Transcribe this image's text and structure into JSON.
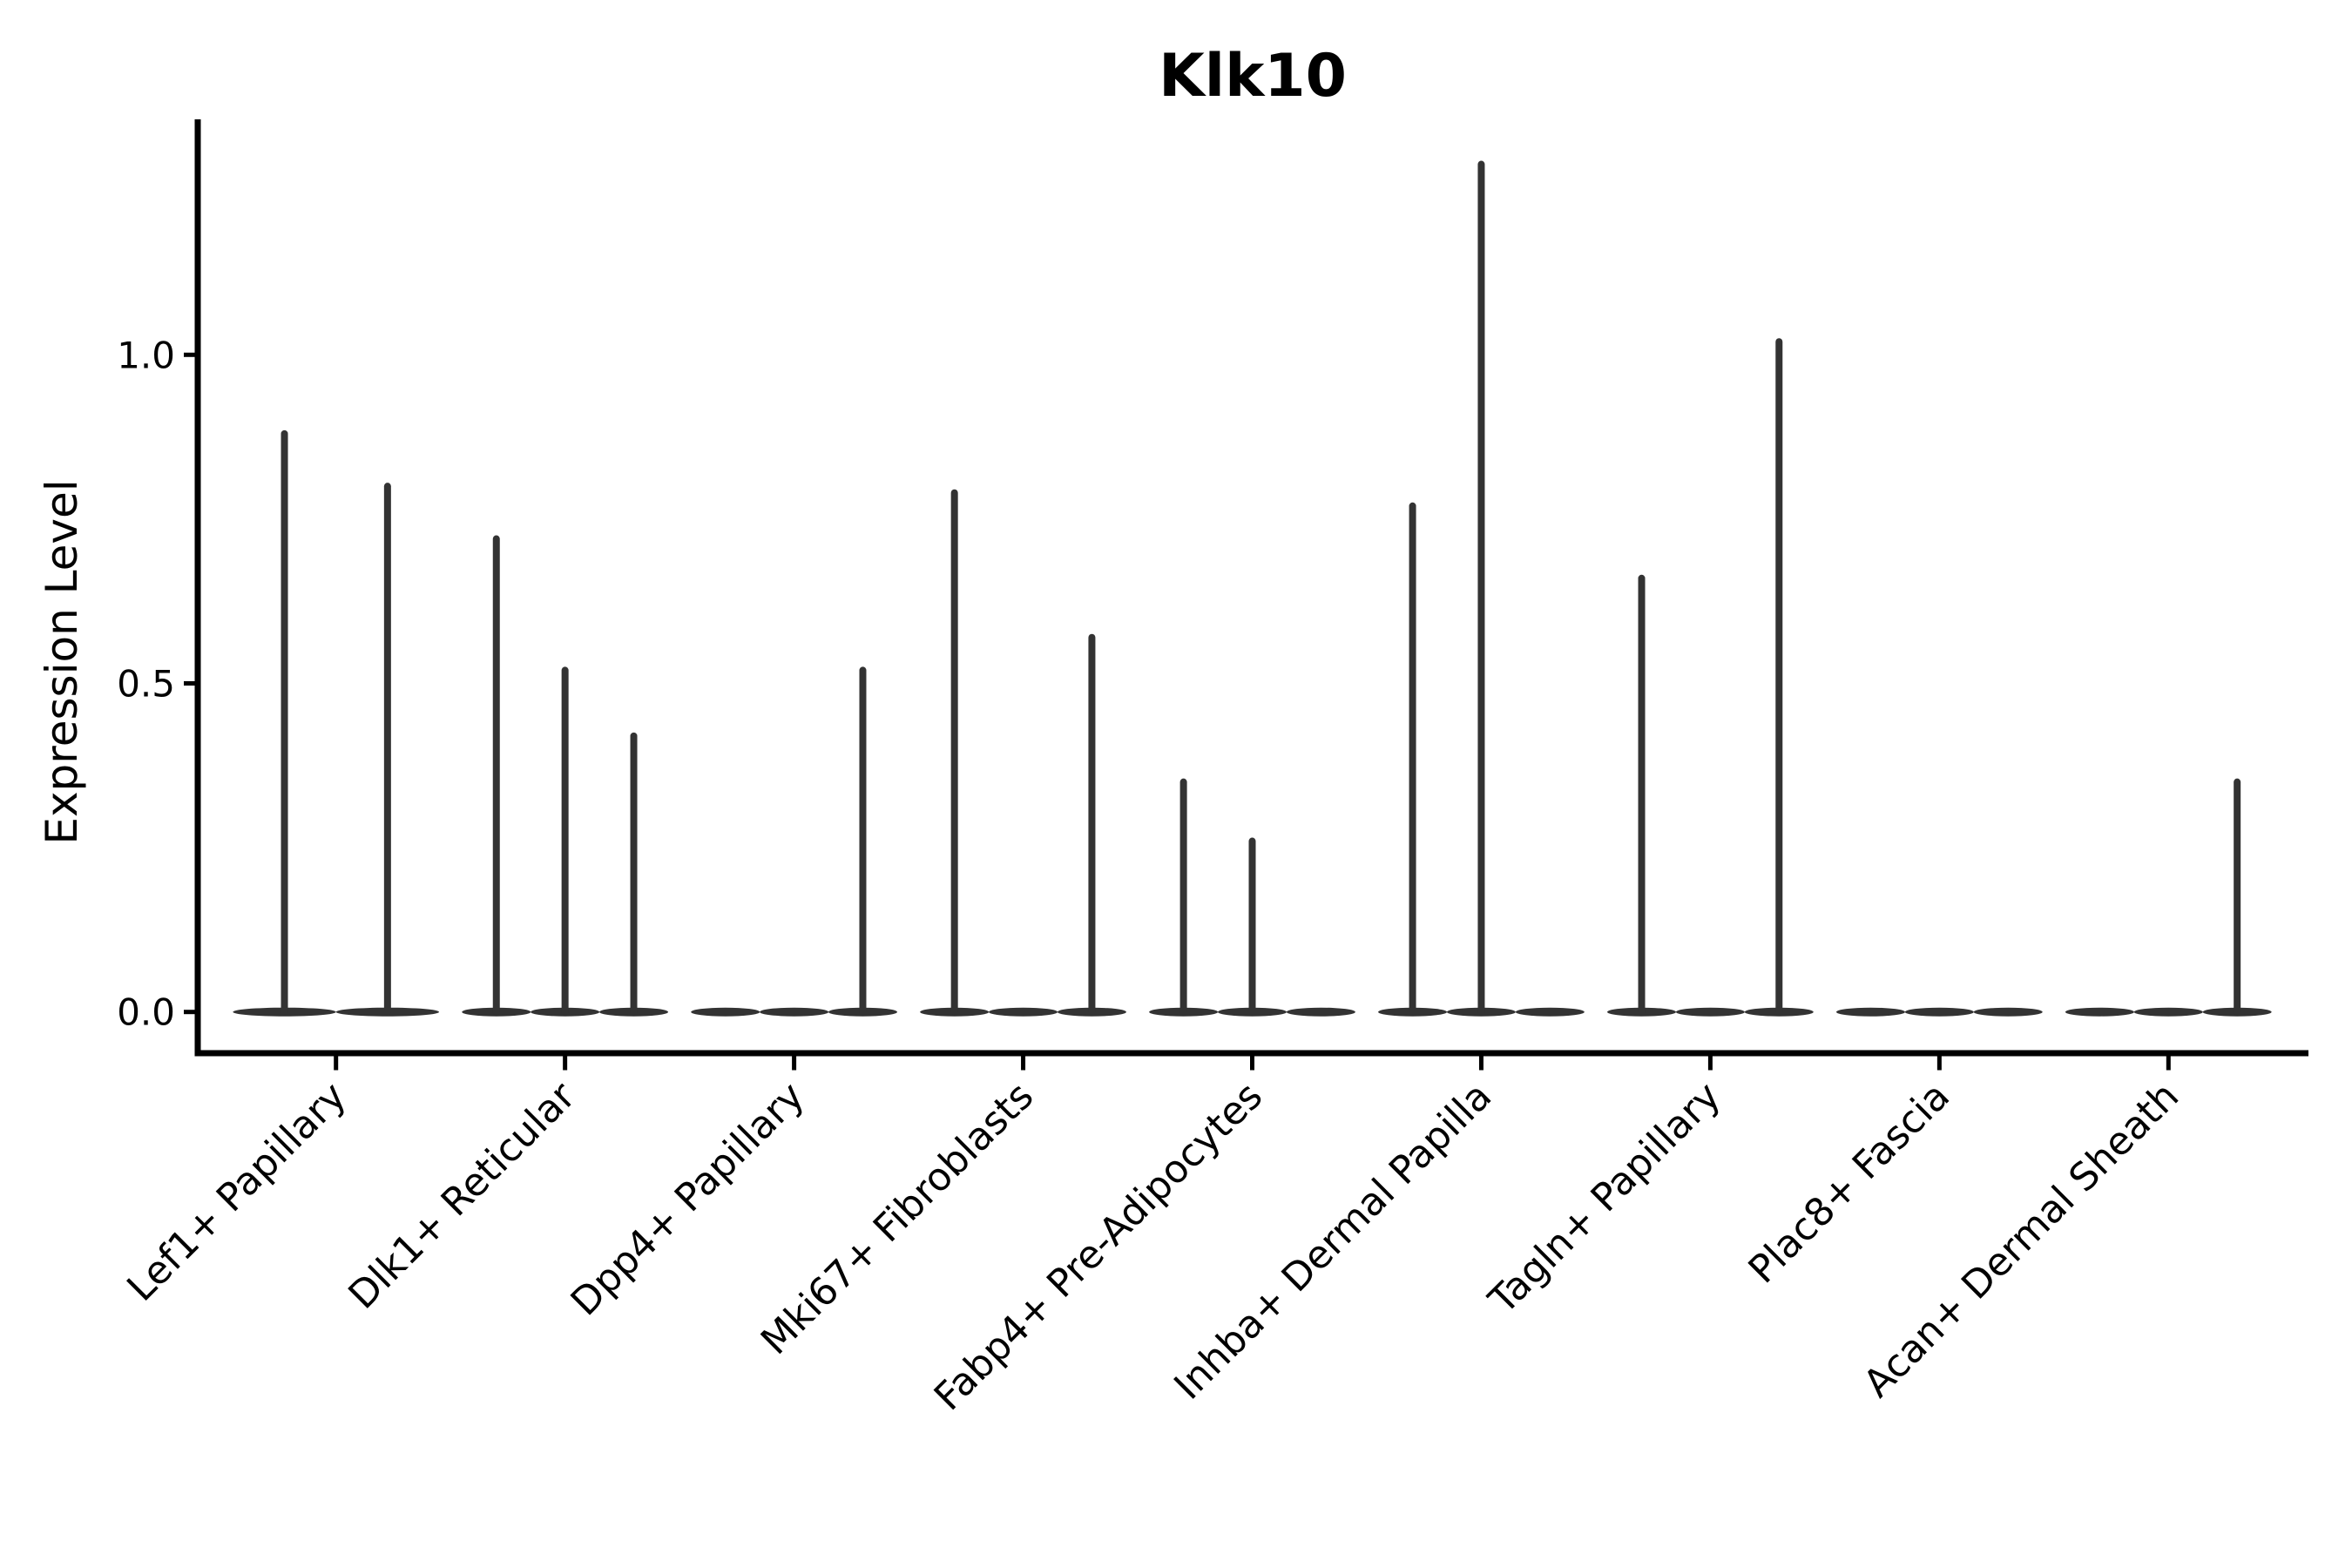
{
  "title": "Klk10",
  "chart_data": {
    "type": "violin",
    "title": "Klk10",
    "xlabel": "",
    "ylabel": "Expression Level",
    "ylim": [
      0,
      1.36
    ],
    "ytick_labels": [
      "0.0",
      "0.5",
      "1.0"
    ],
    "ytick_values": [
      0.0,
      0.5,
      1.0
    ],
    "grid": false,
    "legend": null,
    "spines": [
      "left",
      "bottom"
    ],
    "violin_color": "#333333",
    "axis_color": "#000000",
    "categories": [
      "Lef1+ Papillary",
      "Dlk1+ Reticular",
      "Dpp4+ Papillary",
      "Mki67+ Fibroblasts",
      "Fabp4+ Pre-Adipocytes",
      "Inhba+ Dermal Papilla",
      "Tagln+ Papillary",
      "Plac8+ Fascia",
      "Acan+ Dermal Sheath"
    ],
    "violins": [
      {
        "category_index": 0,
        "category": "Lef1+ Papillary",
        "offset": -0.225,
        "rel_width": 0.45,
        "max_expression": 0.88
      },
      {
        "category_index": 0,
        "category": "Lef1+ Papillary",
        "offset": 0.225,
        "rel_width": 0.45,
        "max_expression": 0.8
      },
      {
        "category_index": 1,
        "category": "Dlk1+ Reticular",
        "offset": -0.3,
        "rel_width": 0.3,
        "max_expression": 0.72
      },
      {
        "category_index": 1,
        "category": "Dlk1+ Reticular",
        "offset": 0.0,
        "rel_width": 0.3,
        "max_expression": 0.52
      },
      {
        "category_index": 1,
        "category": "Dlk1+ Reticular",
        "offset": 0.3,
        "rel_width": 0.3,
        "max_expression": 0.42
      },
      {
        "category_index": 2,
        "category": "Dpp4+ Papillary",
        "offset": -0.3,
        "rel_width": 0.3,
        "max_expression": 0.0
      },
      {
        "category_index": 2,
        "category": "Dpp4+ Papillary",
        "offset": 0.0,
        "rel_width": 0.3,
        "max_expression": 0.0
      },
      {
        "category_index": 2,
        "category": "Dpp4+ Papillary",
        "offset": 0.3,
        "rel_width": 0.3,
        "max_expression": 0.52
      },
      {
        "category_index": 3,
        "category": "Mki67+ Fibroblasts",
        "offset": -0.3,
        "rel_width": 0.3,
        "max_expression": 0.79
      },
      {
        "category_index": 3,
        "category": "Mki67+ Fibroblasts",
        "offset": 0.0,
        "rel_width": 0.3,
        "max_expression": 0.0
      },
      {
        "category_index": 3,
        "category": "Mki67+ Fibroblasts",
        "offset": 0.3,
        "rel_width": 0.3,
        "max_expression": 0.57
      },
      {
        "category_index": 4,
        "category": "Fabp4+ Pre-Adipocytes",
        "offset": -0.3,
        "rel_width": 0.3,
        "max_expression": 0.35
      },
      {
        "category_index": 4,
        "category": "Fabp4+ Pre-Adipocytes",
        "offset": 0.0,
        "rel_width": 0.3,
        "max_expression": 0.26
      },
      {
        "category_index": 4,
        "category": "Fabp4+ Pre-Adipocytes",
        "offset": 0.3,
        "rel_width": 0.3,
        "max_expression": 0.0
      },
      {
        "category_index": 5,
        "category": "Inhba+ Dermal Papilla",
        "offset": -0.3,
        "rel_width": 0.3,
        "max_expression": 0.77
      },
      {
        "category_index": 5,
        "category": "Inhba+ Dermal Papilla",
        "offset": 0.0,
        "rel_width": 0.3,
        "max_expression": 1.29
      },
      {
        "category_index": 5,
        "category": "Inhba+ Dermal Papilla",
        "offset": 0.3,
        "rel_width": 0.3,
        "max_expression": 0.0
      },
      {
        "category_index": 6,
        "category": "Tagln+ Papillary",
        "offset": -0.3,
        "rel_width": 0.3,
        "max_expression": 0.66
      },
      {
        "category_index": 6,
        "category": "Tagln+ Papillary",
        "offset": 0.0,
        "rel_width": 0.3,
        "max_expression": 0.0
      },
      {
        "category_index": 6,
        "category": "Tagln+ Papillary",
        "offset": 0.3,
        "rel_width": 0.3,
        "max_expression": 1.02
      },
      {
        "category_index": 7,
        "category": "Plac8+ Fascia",
        "offset": -0.3,
        "rel_width": 0.3,
        "max_expression": 0.0
      },
      {
        "category_index": 7,
        "category": "Plac8+ Fascia",
        "offset": 0.0,
        "rel_width": 0.3,
        "max_expression": 0.0
      },
      {
        "category_index": 7,
        "category": "Plac8+ Fascia",
        "offset": 0.3,
        "rel_width": 0.3,
        "max_expression": 0.0
      },
      {
        "category_index": 8,
        "category": "Acan+ Dermal Sheath",
        "offset": -0.3,
        "rel_width": 0.3,
        "max_expression": 0.0
      },
      {
        "category_index": 8,
        "category": "Acan+ Dermal Sheath",
        "offset": 0.0,
        "rel_width": 0.3,
        "max_expression": 0.0
      },
      {
        "category_index": 8,
        "category": "Acan+ Dermal Sheath",
        "offset": 0.3,
        "rel_width": 0.3,
        "max_expression": 0.35
      }
    ]
  }
}
